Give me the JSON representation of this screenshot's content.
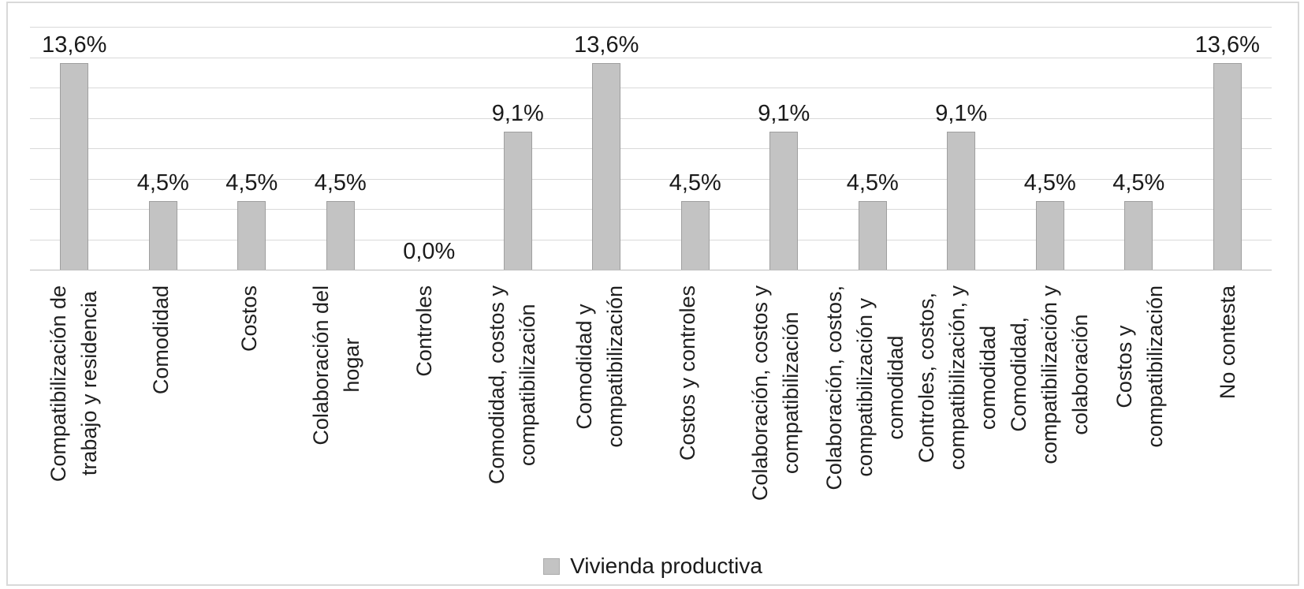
{
  "chart_data": {
    "type": "bar",
    "title": "",
    "xlabel": "",
    "ylabel": "",
    "categories": [
      "Compatibilización de\ntrabajo y residencia",
      "Comodidad",
      "Costos",
      "Colaboración del\nhogar",
      "Controles",
      "Comodidad, costos y\ncompatibilización",
      "Comodidad y\ncompatibilización",
      "Costos y controles",
      "Colaboración, costos y\ncompatibilización",
      "Colaboración, costos,\ncompatibilización y\ncomodidad",
      "Controles, costos,\ncompatibilización, y\ncomodidad",
      "Comodidad,\ncompatibilización y\ncolaboración",
      "Costos y\ncompatibilización",
      "No contesta"
    ],
    "values": [
      13.6,
      4.5,
      4.5,
      4.5,
      0.0,
      9.1,
      13.6,
      4.5,
      9.1,
      4.5,
      9.1,
      4.5,
      4.5,
      13.6
    ],
    "value_labels": [
      "13,6%",
      "4,5%",
      "4,5%",
      "4,5%",
      "0,0%",
      "9,1%",
      "13,6%",
      "4,5%",
      "9,1%",
      "4,5%",
      "9,1%",
      "4,5%",
      "4,5%",
      "13,6%"
    ],
    "series": [
      {
        "name": "Vivienda productiva",
        "values": [
          13.6,
          4.5,
          4.5,
          4.5,
          0.0,
          9.1,
          13.6,
          4.5,
          9.1,
          4.5,
          9.1,
          4.5,
          4.5,
          13.6
        ]
      }
    ],
    "legend_entries": [
      "Vivienda productiva"
    ],
    "legend_position": "bottom",
    "grid": true,
    "ylim": [
      0,
      16
    ],
    "gridline_step": 2,
    "y_axis_labels_visible": false
  },
  "legend": {
    "label": "Vivienda productiva"
  },
  "colors": {
    "bar_fill": "#c3c3c3",
    "bar_border": "#9f9f9f",
    "gridline": "#d9d9d9",
    "axis_line": "#bdbdbd",
    "text": "#1a1a1a",
    "frame_border": "#d9d9d9",
    "background": "#ffffff"
  }
}
